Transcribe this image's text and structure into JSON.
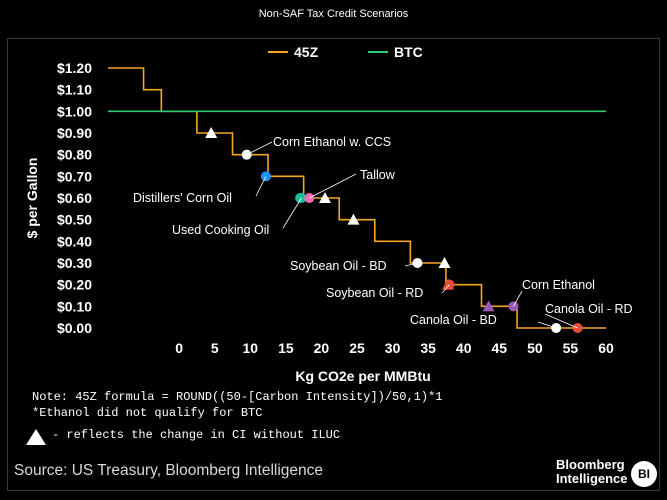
{
  "header": {
    "title": "Non-SAF Tax Credit Scenarios"
  },
  "chart_data": {
    "type": "line",
    "title": "Non-SAF Tax Credit Scenarios",
    "xlabel": "Kg CO2e per MMBtu",
    "ylabel": "$ per Gallon",
    "xlim": [
      -10,
      60
    ],
    "ylim": [
      0,
      1.2
    ],
    "x_ticks": [
      "0",
      "5",
      "10",
      "15",
      "20",
      "25",
      "30",
      "35",
      "40",
      "45",
      "50",
      "55",
      "60"
    ],
    "y_ticks": [
      "$0.00",
      "$0.10",
      "$0.20",
      "$0.30",
      "$0.40",
      "$0.50",
      "$0.60",
      "$0.70",
      "$0.80",
      "$0.90",
      "$1.00",
      "$1.10",
      "$1.20"
    ],
    "legend": [
      "45Z",
      "BTC"
    ],
    "colors": {
      "45Z": "#f5a623",
      "BTC": "#2ecc71"
    },
    "series": [
      {
        "name": "45Z",
        "x": [
          -10,
          -5,
          -5,
          -2.5,
          -2.5,
          2.5,
          2.5,
          7.5,
          7.5,
          12.5,
          12.5,
          17.5,
          17.5,
          22.5,
          22.5,
          27.5,
          27.5,
          32.5,
          32.5,
          37.5,
          37.5,
          42.5,
          42.5,
          47.5,
          47.5,
          60
        ],
        "y": [
          1.2,
          1.2,
          1.1,
          1.1,
          1.0,
          1.0,
          0.9,
          0.9,
          0.8,
          0.8,
          0.7,
          0.7,
          0.6,
          0.6,
          0.5,
          0.5,
          0.4,
          0.4,
          0.3,
          0.3,
          0.2,
          0.2,
          0.1,
          0.1,
          0.0,
          0.0
        ]
      },
      {
        "name": "BTC",
        "x": [
          -10,
          60
        ],
        "y": [
          1.0,
          1.0
        ]
      }
    ],
    "points": [
      {
        "label": "Corn Ethanol w. CCS",
        "x": 9.5,
        "y": 0.8,
        "color": "#9b59b6",
        "shape": "circle-hatched",
        "annotated": true
      },
      {
        "label": "",
        "x": 4.5,
        "y": 0.9,
        "color": "#9b59b6",
        "shape": "triangle-hatched",
        "annotated": false
      },
      {
        "label": "Distillers' Corn Oil",
        "x": 12.2,
        "y": 0.7,
        "color": "#1e90ff",
        "shape": "circle",
        "annotated": true
      },
      {
        "label": "",
        "x": 17,
        "y": 0.6,
        "color": "#1abc9c",
        "shape": "circle",
        "annotated": false
      },
      {
        "label": "Used Cooking Oil",
        "x": 17.2,
        "y": 0.6,
        "color": "#1abc9c",
        "shape": "circle",
        "annotated": true
      },
      {
        "label": "Tallow",
        "x": 18.3,
        "y": 0.6,
        "color": "#ff69b4",
        "shape": "circle",
        "annotated": true
      },
      {
        "label": "",
        "x": 20.5,
        "y": 0.6,
        "color": "#ffffff",
        "shape": "triangle-hatched",
        "annotated": false
      },
      {
        "label": "",
        "x": 24.5,
        "y": 0.5,
        "color": "#ffffff",
        "shape": "triangle",
        "annotated": false
      },
      {
        "label": "Soybean Oil - BD",
        "x": 33.5,
        "y": 0.3,
        "color": "#ffffff",
        "shape": "circle-hatched",
        "annotated": true
      },
      {
        "label": "",
        "x": 37.3,
        "y": 0.3,
        "color": "#e74c3c",
        "shape": "triangle-hatched",
        "annotated": false
      },
      {
        "label": "Soybean Oil - RD",
        "x": 38,
        "y": 0.2,
        "color": "#e74c3c",
        "shape": "circle",
        "annotated": true
      },
      {
        "label": "",
        "x": 37.8,
        "y": 0.2,
        "color": "#e74c3c",
        "shape": "triangle",
        "annotated": false
      },
      {
        "label": "",
        "x": 43.5,
        "y": 0.1,
        "color": "#9b59b6",
        "shape": "triangle",
        "annotated": false
      },
      {
        "label": "Corn Ethanol",
        "x": 47,
        "y": 0.1,
        "color": "#9b59b6",
        "shape": "circle",
        "annotated": true
      },
      {
        "label": "Canola Oil - BD",
        "x": 53,
        "y": 0.0,
        "color": "#e74c3c",
        "shape": "circle-hatched",
        "annotated": true
      },
      {
        "label": "Canola Oil - RD",
        "x": 56,
        "y": 0.0,
        "color": "#e74c3c",
        "shape": "circle",
        "annotated": true
      }
    ]
  },
  "notes": {
    "formula": "Note: 45Z formula = ROUND((50-[Carbon Intensity])/50,1)*1",
    "ethanol": "*Ethanol did not qualify for BTC",
    "triangle_legend": "- reflects the change in CI without ILUC"
  },
  "footer": {
    "source": "Source: US Treasury, Bloomberg Intelligence",
    "logo_line1": "Bloomberg",
    "logo_line2": "Intelligence",
    "badge": "BI"
  }
}
